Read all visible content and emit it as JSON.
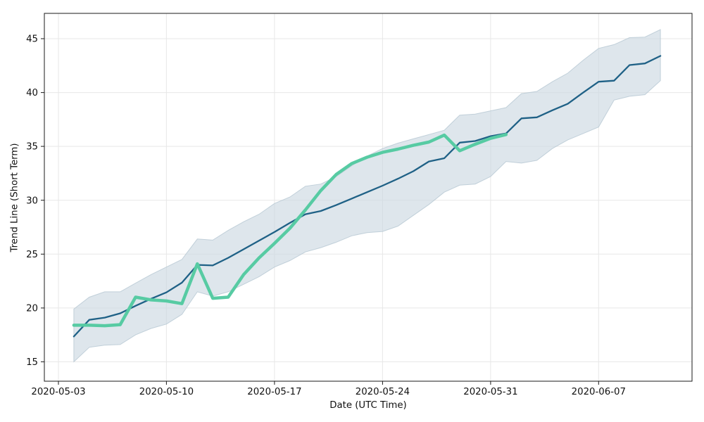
{
  "figure": {
    "background": "#ffffff"
  },
  "chart_data": {
    "type": "line",
    "title": "",
    "xlabel": "Date (UTC Time)",
    "ylabel": "Trend Line (Short Term)",
    "grid": true,
    "legend_position": "none",
    "x_origin": "2020-05-03",
    "xlim_days": [
      -0.91,
      41.05
    ],
    "ylim": [
      13.2,
      47.35
    ],
    "yticks": [
      15,
      20,
      25,
      30,
      35,
      40,
      45
    ],
    "xticks": [
      "2020-05-03",
      "2020-05-10",
      "2020-05-17",
      "2020-05-24",
      "2020-05-31",
      "2020-06-07"
    ],
    "x": [
      "2020-05-04",
      "2020-05-05",
      "2020-05-06",
      "2020-05-07",
      "2020-05-08",
      "2020-05-09",
      "2020-05-10",
      "2020-05-11",
      "2020-05-12",
      "2020-05-13",
      "2020-05-14",
      "2020-05-15",
      "2020-05-16",
      "2020-05-17",
      "2020-05-18",
      "2020-05-19",
      "2020-05-20",
      "2020-05-21",
      "2020-05-22",
      "2020-05-23",
      "2020-05-24",
      "2020-05-25",
      "2020-05-26",
      "2020-05-27",
      "2020-05-28",
      "2020-05-29",
      "2020-05-30",
      "2020-05-31",
      "2020-06-01",
      "2020-06-02",
      "2020-06-03",
      "2020-06-04",
      "2020-06-05",
      "2020-06-06",
      "2020-06-07",
      "2020-06-08",
      "2020-06-09",
      "2020-06-10",
      "2020-06-11"
    ],
    "series": [
      {
        "name": "price_line",
        "color": "#57cba3",
        "linewidth": 4.5,
        "values": [
          18.4,
          18.4,
          18.35,
          18.45,
          21.0,
          20.75,
          20.65,
          20.4,
          24.1,
          20.9,
          21.0,
          23.1,
          24.65,
          26.0,
          27.4,
          29.1,
          30.9,
          32.4,
          33.4,
          34.0,
          34.45,
          34.75,
          35.1,
          35.4,
          36.05,
          34.6,
          35.2,
          35.75,
          36.1
        ]
      },
      {
        "name": "trend_line",
        "color": "#1f6186",
        "linewidth": 2.3,
        "values": [
          17.35,
          18.9,
          19.1,
          19.5,
          20.2,
          20.85,
          21.45,
          22.35,
          24.0,
          23.95,
          24.65,
          25.45,
          26.25,
          27.05,
          27.9,
          28.7,
          29.0,
          29.55,
          30.15,
          30.75,
          31.35,
          32.0,
          32.7,
          33.6,
          33.9,
          35.35,
          35.5,
          35.95,
          36.2,
          37.6,
          37.7,
          38.35,
          38.95,
          40.0,
          41.0,
          41.1,
          42.55,
          42.7,
          43.4
        ]
      }
    ],
    "band": {
      "name": "trend_confidence_band",
      "fill": "#ccd9e2",
      "fill_opacity": 0.65,
      "edge": "#b5c7d2",
      "lower": [
        15.0,
        16.35,
        16.55,
        16.6,
        17.5,
        18.1,
        18.5,
        19.4,
        21.5,
        21.1,
        21.5,
        22.2,
        22.9,
        23.8,
        24.4,
        25.2,
        25.6,
        26.1,
        26.7,
        27.0,
        27.1,
        27.6,
        28.6,
        29.6,
        30.75,
        31.4,
        31.5,
        32.2,
        33.6,
        33.45,
        33.7,
        34.8,
        35.6,
        36.2,
        36.8,
        39.3,
        39.65,
        39.8,
        41.1
      ],
      "upper": [
        19.9,
        21.0,
        21.5,
        21.5,
        22.3,
        23.1,
        23.8,
        24.5,
        26.4,
        26.3,
        27.2,
        28.0,
        28.7,
        29.7,
        30.3,
        31.3,
        31.5,
        32.2,
        33.2,
        34.1,
        34.8,
        35.3,
        35.7,
        36.1,
        36.5,
        37.9,
        38.0,
        38.3,
        38.6,
        39.9,
        40.1,
        41.0,
        41.8,
        43.0,
        44.1,
        44.45,
        45.1,
        45.15,
        45.85
      ]
    },
    "colors": {
      "grid": "#e7e7e7",
      "spine": "#1a1a1a",
      "tick_text": "#111111"
    }
  }
}
